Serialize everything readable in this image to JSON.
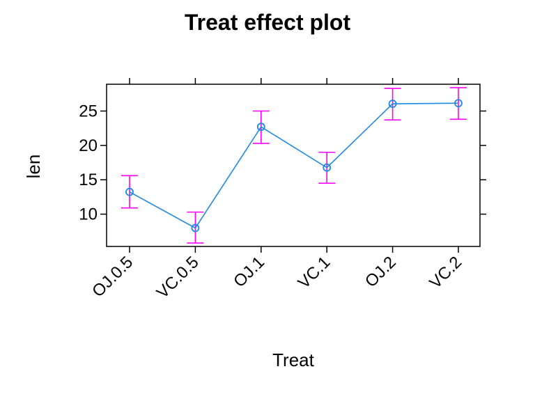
{
  "chart_data": {
    "type": "line",
    "title": "Treat effect plot",
    "xlabel": "Treat",
    "ylabel": "len",
    "categories": [
      "OJ.0.5",
      "VC.0.5",
      "OJ.1",
      "VC.1",
      "OJ.2",
      "VC.2"
    ],
    "values": [
      13.23,
      7.98,
      22.7,
      16.77,
      26.06,
      26.14
    ],
    "lower": [
      10.9,
      5.8,
      20.3,
      14.5,
      23.7,
      23.8
    ],
    "upper": [
      15.6,
      10.3,
      25.0,
      19.0,
      28.3,
      28.4
    ],
    "yticks": [
      10,
      15,
      20,
      25
    ],
    "ylim": [
      5.3,
      28.9
    ],
    "grid": false,
    "colors": {
      "line": "#1e88e5",
      "points": "#1e88e5",
      "error_bars": "#ff00ff",
      "axes": "#000000"
    }
  }
}
